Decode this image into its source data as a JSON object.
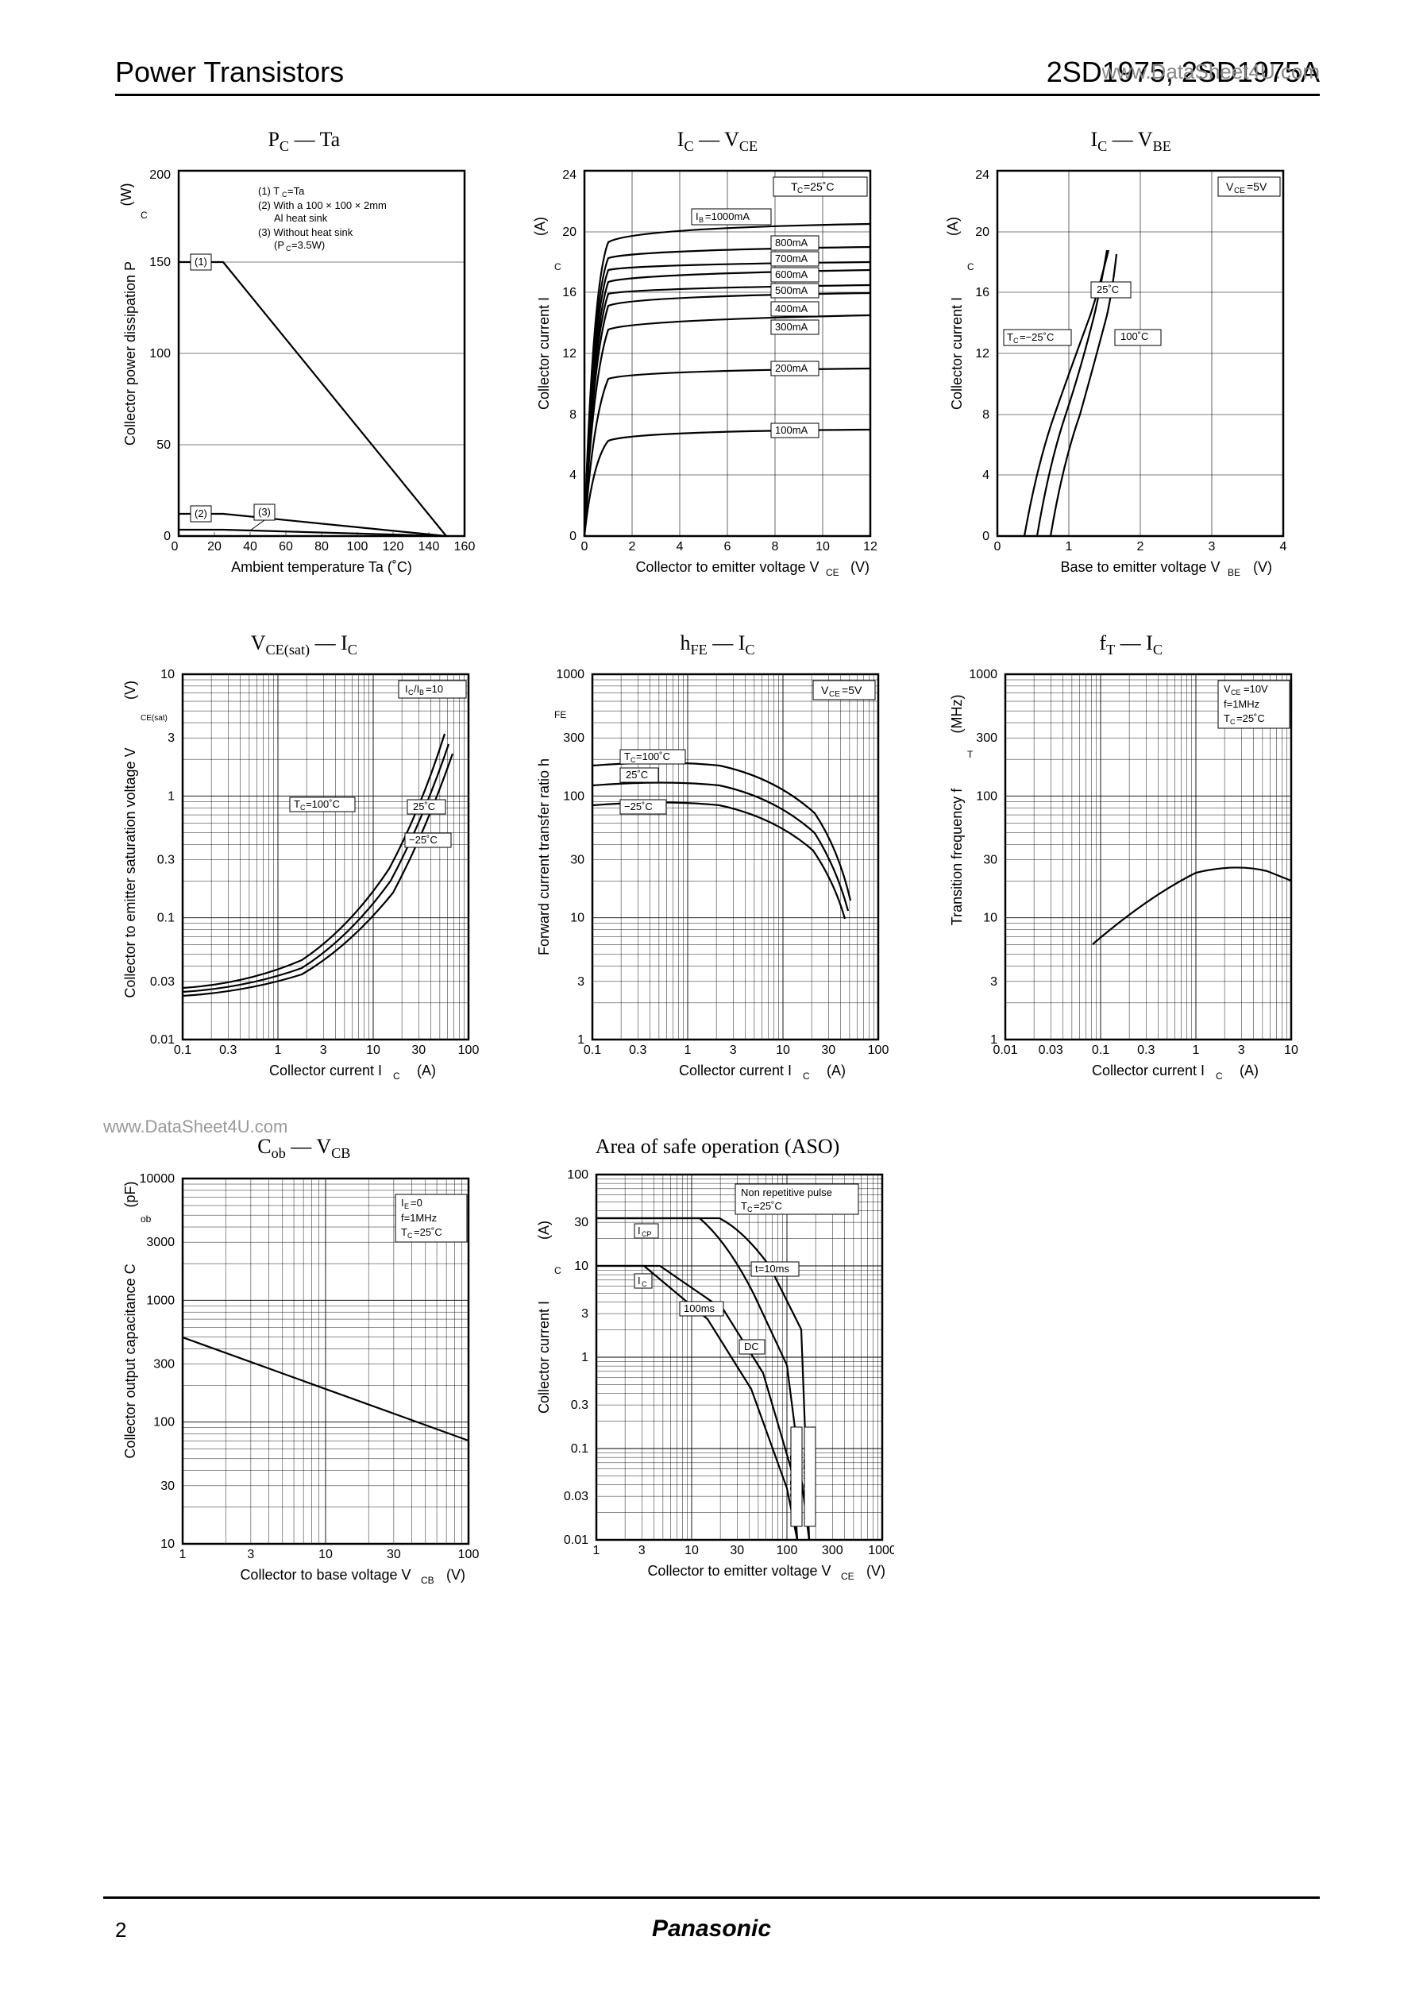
{
  "header": {
    "left": "Power Transistors",
    "right": "2SD1975, 2SD1975A",
    "watermark_top": "www.DataSheet4U.com",
    "watermark_mid": "www.DataSheet4U.com",
    "page_num": "2",
    "brand": "Panasonic"
  },
  "colors": {
    "line": "#000000",
    "bg": "#ffffff",
    "watermark": "#999999"
  },
  "chart1": {
    "title": "P_C — Ta",
    "xlabel": "Ambient temperature   Ta   (˚C)",
    "ylabel": "Collector power dissipation   P_C   (W)",
    "xticks": [
      0,
      20,
      40,
      60,
      80,
      100,
      120,
      140,
      160
    ],
    "yticks": [
      0,
      50,
      100,
      150,
      200
    ],
    "ylim": [
      0,
      200
    ],
    "xlim": [
      0,
      160
    ],
    "legend": [
      "(1) T_C=Ta",
      "(2) With a 100 × 100 × 2mm",
      "     Al heat sink",
      "(3) Without heat sink",
      "     (P_C=3.5W)"
    ],
    "curve1": [
      [
        0,
        150
      ],
      [
        25,
        150
      ],
      [
        150,
        0
      ]
    ],
    "curve2": [
      [
        0,
        12
      ],
      [
        25,
        12
      ],
      [
        150,
        0
      ]
    ],
    "curve3": [
      [
        0,
        3.5
      ],
      [
        25,
        3.5
      ],
      [
        150,
        0
      ]
    ],
    "anno1": "(1)",
    "anno2": "(2)",
    "anno3": "(3)"
  },
  "chart2": {
    "title": "I_C — V_CE",
    "xlabel": "Collector to emitter voltage   V_CE   (V)",
    "ylabel": "Collector current   I_C   (A)",
    "xticks": [
      0,
      2,
      4,
      6,
      8,
      10,
      12
    ],
    "yticks": [
      0,
      4,
      8,
      12,
      16,
      20,
      24
    ],
    "box_label": "T_C=25˚C",
    "ib_label": "I_B=1000mA",
    "series_labels": [
      "800mA",
      "700mA",
      "600mA",
      "500mA",
      "400mA",
      "300mA",
      "200mA",
      "100mA"
    ],
    "series_y_at_12": [
      19,
      18,
      17.5,
      16.5,
      16,
      14.5,
      11,
      7
    ],
    "ib1000_y": 20.5
  },
  "chart3": {
    "title": "I_C — V_BE",
    "xlabel": "Base to emitter voltage   V_BE   (V)",
    "ylabel": "Collector current   I_C   (A)",
    "xticks": [
      0,
      1,
      2,
      3,
      4
    ],
    "yticks": [
      0,
      4,
      8,
      12,
      16,
      20,
      24
    ],
    "box_label": "V_CE=5V",
    "curves": {
      "m25": {
        "label": "T_C=−25˚C",
        "pts": [
          [
            0.75,
            0
          ],
          [
            1.05,
            4
          ],
          [
            1.25,
            8
          ],
          [
            1.45,
            12
          ],
          [
            1.58,
            16
          ],
          [
            1.65,
            18
          ]
        ]
      },
      "p25": {
        "label": "25˚C",
        "pts": [
          [
            0.55,
            0
          ],
          [
            0.85,
            4
          ],
          [
            1.05,
            8
          ],
          [
            1.25,
            12
          ],
          [
            1.4,
            16
          ],
          [
            1.5,
            18.5
          ]
        ]
      },
      "p100": {
        "label": "100˚C",
        "pts": [
          [
            0.38,
            0
          ],
          [
            0.68,
            4
          ],
          [
            0.92,
            8
          ],
          [
            1.12,
            12
          ],
          [
            1.35,
            16
          ],
          [
            1.52,
            18.5
          ]
        ]
      }
    }
  },
  "chart4": {
    "title": "V_CE(sat) — I_C",
    "xlabel": "Collector current   I_C   (A)",
    "ylabel": "Collector to emitter saturation voltage   V_CE(sat)   (V)",
    "xticks": [
      0.1,
      0.3,
      1,
      3,
      10,
      30,
      100
    ],
    "yticks": [
      0.01,
      0.03,
      0.1,
      0.3,
      1,
      3,
      10
    ],
    "box_label": "I_C/I_B=10",
    "labels": [
      "T_C=100˚C",
      "25˚C",
      "−25˚C"
    ]
  },
  "chart5": {
    "title": "h_FE — I_C",
    "xlabel": "Collector current   I_C   (A)",
    "ylabel": "Forward current transfer ratio   h_FE",
    "xticks": [
      0.1,
      0.3,
      1,
      3,
      10,
      30,
      100
    ],
    "yticks": [
      1,
      3,
      10,
      30,
      100,
      300,
      1000
    ],
    "box_label": "V_CE=5V",
    "labels": [
      "T_C=100˚C",
      "25˚C",
      "−25˚C"
    ]
  },
  "chart6": {
    "title": "f_T — I_C",
    "xlabel": "Collector current   I_C   (A)",
    "ylabel": "Transition frequency   f_T   (MHz)",
    "xticks": [
      0.01,
      0.03,
      0.1,
      0.3,
      1,
      3,
      10
    ],
    "yticks": [
      1,
      3,
      10,
      30,
      100,
      300,
      1000
    ],
    "box_lines": [
      "V_CE=10V",
      "f=1MHz",
      "T_C=25˚C"
    ]
  },
  "chart7": {
    "title": "C_ob — V_CB",
    "xlabel": "Collector to base voltage   V_CB   (V)",
    "ylabel": "Collector output capacitance   C_ob   (pF)",
    "xticks": [
      1,
      3,
      10,
      30,
      100
    ],
    "yticks": [
      10,
      30,
      100,
      300,
      1000,
      3000,
      10000
    ],
    "box_lines": [
      "I_E=0",
      "f=1MHz",
      "T_C=25˚C"
    ]
  },
  "chart8": {
    "title": "Area of safe operation (ASO)",
    "xlabel": "Collector to emitter voltage   V_CE   (V)",
    "ylabel": "Collector current   I_C   (A)",
    "xticks": [
      1,
      3,
      10,
      30,
      100,
      300,
      1000
    ],
    "yticks": [
      0.01,
      0.03,
      0.1,
      0.3,
      1,
      3,
      10,
      30,
      100
    ],
    "box_lines": [
      "Non repetitive pulse",
      "T_C=25˚C"
    ],
    "labels": {
      "icp": "I_CP",
      "ic": "I_C",
      "t10": "t=10ms",
      "t100": "100ms",
      "dc": "DC",
      "d1": "2SD1975",
      "d2": "2SD1975A"
    }
  }
}
